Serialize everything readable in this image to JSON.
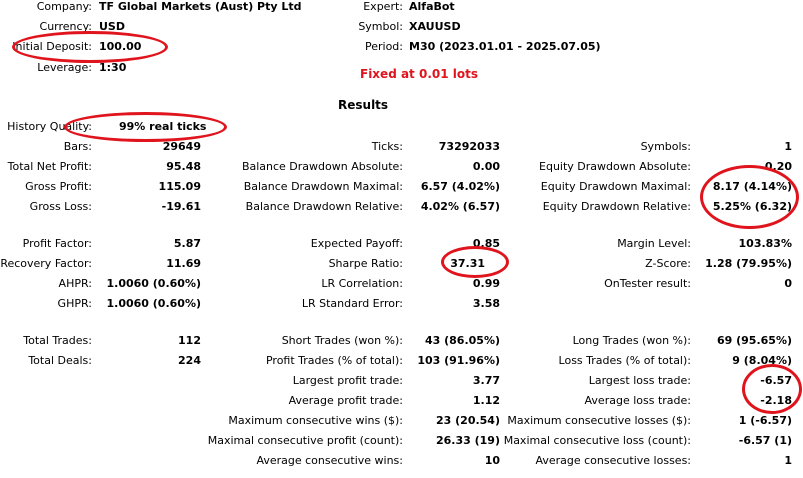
{
  "header": {
    "company_label": "Company:",
    "company_value": "TF Global Markets (Aust) Pty Ltd",
    "currency_label": "Currency:",
    "currency_value": "USD",
    "deposit_label": "Initial Deposit:",
    "deposit_value": "100.00",
    "leverage_label": "Leverage:",
    "leverage_value": "1:30",
    "expert_label": "Expert:",
    "expert_value": "AlfaBot",
    "symbol_label": "Symbol:",
    "symbol_value": "XAUUSD",
    "period_label": "Period:",
    "period_value": "M30 (2023.01.01 - 2025.07.05)"
  },
  "note": "Fixed at 0.01 lots",
  "results_title": "Results",
  "history": {
    "label": "History Quality:",
    "value": "99% real ticks"
  },
  "col1": [
    {
      "label": "Bars:",
      "value": "29649"
    },
    {
      "label": "Total Net Profit:",
      "value": "95.48"
    },
    {
      "label": "Gross Profit:",
      "value": "115.09"
    },
    {
      "label": "Gross Loss:",
      "value": "-19.61"
    },
    {
      "label": "Profit Factor:",
      "value": "5.87"
    },
    {
      "label": "Recovery Factor:",
      "value": "11.69"
    },
    {
      "label": "AHPR:",
      "value": "1.0060 (0.60%)"
    },
    {
      "label": "GHPR:",
      "value": "1.0060 (0.60%)"
    },
    {
      "label": "Total Trades:",
      "value": "112"
    },
    {
      "label": "Total Deals:",
      "value": "224"
    }
  ],
  "col2": [
    {
      "label": "Ticks:",
      "value": "73292033"
    },
    {
      "label": "Balance Drawdown Absolute:",
      "value": "0.00"
    },
    {
      "label": "Balance Drawdown Maximal:",
      "value": "6.57 (4.02%)"
    },
    {
      "label": "Balance Drawdown Relative:",
      "value": "4.02% (6.57)"
    },
    {
      "label": "Expected Payoff:",
      "value": "0.85"
    },
    {
      "label": "Sharpe Ratio:",
      "value": "37.31"
    },
    {
      "label": "LR Correlation:",
      "value": "0.99"
    },
    {
      "label": "LR Standard Error:",
      "value": "3.58"
    },
    {
      "label": "Short Trades (won %):",
      "value": "43 (86.05%)"
    },
    {
      "label": "Profit Trades (% of total):",
      "value": "103 (91.96%)"
    },
    {
      "label": "Largest profit trade:",
      "value": "3.77"
    },
    {
      "label": "Average profit trade:",
      "value": "1.12"
    },
    {
      "label": "Maximum consecutive wins ($):",
      "value": "23 (20.54)"
    },
    {
      "label": "Maximal consecutive profit (count):",
      "value": "26.33 (19)"
    },
    {
      "label": "Average consecutive wins:",
      "value": "10"
    }
  ],
  "col3": [
    {
      "label": "Symbols:",
      "value": "1"
    },
    {
      "label": "Equity Drawdown Absolute:",
      "value": "0.20"
    },
    {
      "label": "Equity Drawdown Maximal:",
      "value": "8.17 (4.14%)"
    },
    {
      "label": "Equity Drawdown Relative:",
      "value": "5.25% (6.32)"
    },
    {
      "label": "Margin Level:",
      "value": "103.83%"
    },
    {
      "label": "Z-Score:",
      "value": "1.28 (79.95%)"
    },
    {
      "label": "OnTester result:",
      "value": "0"
    },
    {
      "label": "Long Trades (won %):",
      "value": "69 (95.65%)"
    },
    {
      "label": "Loss Trades (% of total):",
      "value": "9 (8.04%)"
    },
    {
      "label": "Largest loss trade:",
      "value": "-6.57"
    },
    {
      "label": "Average loss trade:",
      "value": "-2.18"
    },
    {
      "label": "Maximum consecutive losses ($):",
      "value": "1 (-6.57)"
    },
    {
      "label": "Maximal consecutive loss (count):",
      "value": "-6.57 (1)"
    },
    {
      "label": "Average consecutive losses:",
      "value": "1"
    }
  ],
  "accent_color": "#e0141c"
}
